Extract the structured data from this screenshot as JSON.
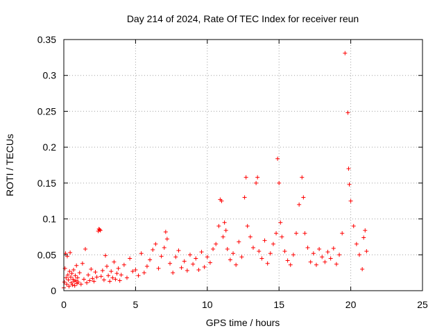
{
  "chart_data": {
    "type": "scatter",
    "title": "Day 214 of 2024, Rate Of TEC Index for receiver reun",
    "xlabel": "GPS time / hours",
    "ylabel": "ROTI / TECUs",
    "xlim": [
      0,
      25
    ],
    "ylim": [
      0,
      0.35
    ],
    "x_ticks": [
      0,
      5,
      10,
      15,
      20,
      25
    ],
    "x_tick_labels": [
      "0",
      "5",
      "10",
      "15",
      "20",
      "25"
    ],
    "y_ticks": [
      0,
      0.05,
      0.1,
      0.15,
      0.2,
      0.25,
      0.3,
      0.35
    ],
    "y_tick_labels": [
      "0",
      "0.05",
      "0.1",
      "0.15",
      "0.2",
      "0.25",
      "0.3",
      "0.35"
    ],
    "grid": true,
    "marker": "plus",
    "color": "#ff0000",
    "series": [
      {
        "x": [
          0.0,
          0.04,
          0.08,
          0.12,
          0.16,
          0.2,
          0.24,
          0.28,
          0.32,
          0.36,
          0.4,
          0.44,
          0.48,
          0.52,
          0.56,
          0.6,
          0.64,
          0.68,
          0.72,
          0.76,
          0.8,
          0.84,
          0.88,
          0.92,
          0.96,
          1.0,
          1.1,
          1.2,
          1.3,
          1.4,
          1.5,
          1.6,
          1.7,
          1.8,
          1.9,
          2.0,
          2.1,
          2.2,
          2.3,
          2.4,
          2.45,
          2.5,
          2.55,
          2.6,
          2.7,
          2.8,
          2.9,
          3.0,
          3.1,
          3.2,
          3.3,
          3.4,
          3.5,
          3.6,
          3.7,
          3.8,
          3.9,
          4.0,
          4.2,
          4.4,
          4.6,
          4.8,
          5.0,
          5.2,
          5.4,
          5.6,
          5.8,
          6.0,
          6.2,
          6.4,
          6.6,
          6.8,
          7.0,
          7.1,
          7.2,
          7.4,
          7.6,
          7.8,
          8.0,
          8.2,
          8.4,
          8.6,
          8.8,
          9.0,
          9.2,
          9.4,
          9.6,
          9.8,
          10.0,
          10.2,
          10.4,
          10.6,
          10.8,
          10.9,
          11.0,
          11.1,
          11.2,
          11.3,
          11.4,
          11.6,
          11.8,
          12.0,
          12.2,
          12.4,
          12.6,
          12.7,
          12.8,
          13.0,
          13.2,
          13.4,
          13.5,
          13.6,
          13.8,
          14.0,
          14.2,
          14.4,
          14.6,
          14.8,
          14.9,
          15.0,
          15.1,
          15.2,
          15.4,
          15.6,
          15.8,
          16.0,
          16.2,
          16.4,
          16.6,
          16.7,
          16.8,
          17.0,
          17.2,
          17.4,
          17.6,
          17.8,
          18.0,
          18.2,
          18.4,
          18.6,
          18.8,
          19.0,
          19.2,
          19.4,
          19.6,
          19.8,
          19.85,
          19.9,
          20.0,
          20.2,
          20.4,
          20.6,
          20.8,
          20.9,
          21.0,
          21.1
        ],
        "y": [
          0.004,
          0.012,
          0.031,
          0.052,
          0.018,
          0.009,
          0.048,
          0.022,
          0.015,
          0.006,
          0.027,
          0.053,
          0.019,
          0.011,
          0.024,
          0.008,
          0.016,
          0.029,
          0.013,
          0.007,
          0.021,
          0.014,
          0.035,
          0.01,
          0.018,
          0.012,
          0.025,
          0.009,
          0.038,
          0.016,
          0.058,
          0.011,
          0.022,
          0.014,
          0.03,
          0.017,
          0.013,
          0.026,
          0.019,
          0.083,
          0.086,
          0.085,
          0.084,
          0.02,
          0.028,
          0.015,
          0.049,
          0.034,
          0.021,
          0.013,
          0.027,
          0.018,
          0.04,
          0.016,
          0.024,
          0.031,
          0.014,
          0.022,
          0.036,
          0.018,
          0.045,
          0.027,
          0.029,
          0.021,
          0.052,
          0.025,
          0.034,
          0.043,
          0.057,
          0.065,
          0.031,
          0.048,
          0.06,
          0.082,
          0.072,
          0.038,
          0.025,
          0.047,
          0.056,
          0.032,
          0.041,
          0.028,
          0.05,
          0.037,
          0.045,
          0.029,
          0.054,
          0.033,
          0.047,
          0.039,
          0.058,
          0.065,
          0.09,
          0.127,
          0.125,
          0.075,
          0.095,
          0.084,
          0.058,
          0.043,
          0.052,
          0.036,
          0.068,
          0.047,
          0.13,
          0.158,
          0.09,
          0.075,
          0.06,
          0.15,
          0.158,
          0.055,
          0.045,
          0.07,
          0.038,
          0.052,
          0.065,
          0.08,
          0.184,
          0.15,
          0.095,
          0.075,
          0.055,
          0.042,
          0.036,
          0.05,
          0.08,
          0.12,
          0.158,
          0.13,
          0.08,
          0.06,
          0.04,
          0.052,
          0.036,
          0.058,
          0.047,
          0.04,
          0.054,
          0.045,
          0.059,
          0.037,
          0.05,
          0.08,
          0.331,
          0.248,
          0.17,
          0.148,
          0.125,
          0.09,
          0.065,
          0.05,
          0.03,
          0.074,
          0.084,
          0.055
        ]
      }
    ]
  }
}
